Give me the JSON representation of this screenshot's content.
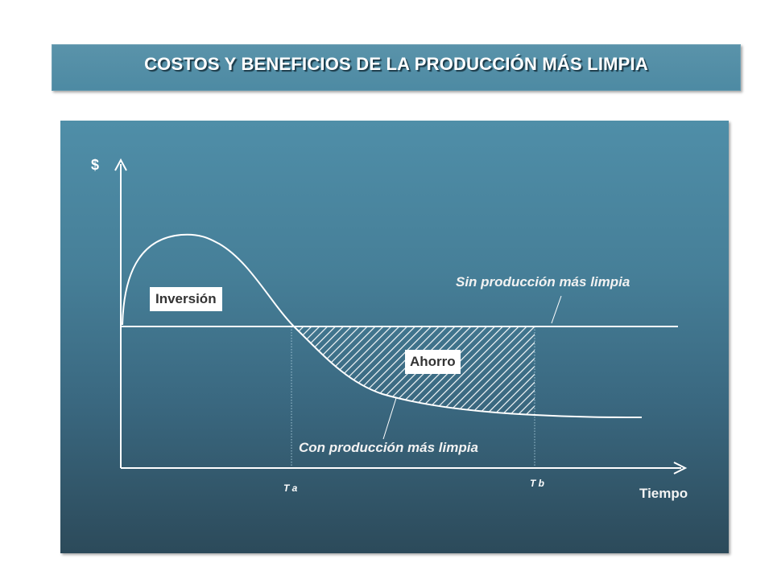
{
  "header": {
    "title": "COSTOS Y BENEFICIOS DE LA PRODUCCIÓN MÁS LIMPIA"
  },
  "diagram": {
    "y_axis_label": "$",
    "x_axis_label": "Tiempo",
    "ticks": {
      "ta": "T a",
      "tb": "T b"
    },
    "curve_without": "Sin producción más limpia",
    "curve_with": "Con producción más limpia",
    "region_investment": "Inversión",
    "region_savings": "Ahorro"
  },
  "colors": {
    "title_bar": "#5a93aa",
    "panel_top": "#4f8ea8",
    "panel_bottom": "#2c4a5a",
    "lines": "#ffffff"
  }
}
